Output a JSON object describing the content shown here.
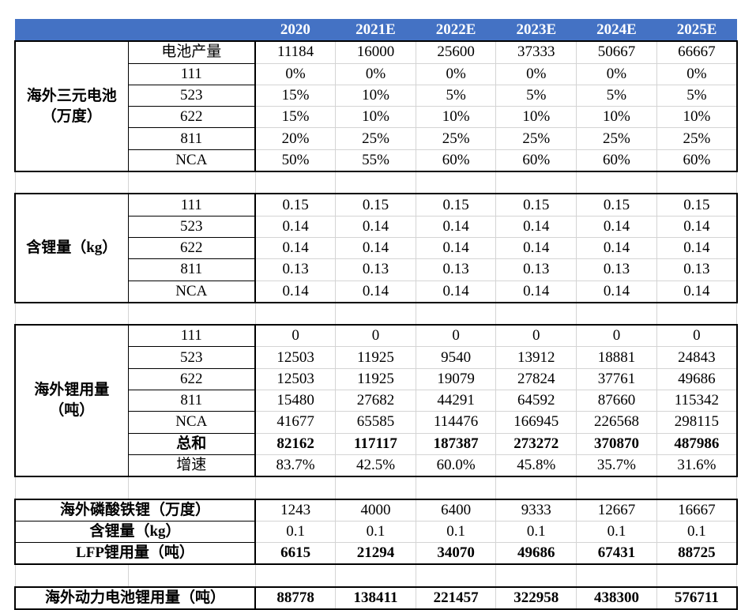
{
  "header": {
    "corner": "",
    "years": [
      "2020",
      "2021E",
      "2022E",
      "2023E",
      "2024E",
      "2025E"
    ]
  },
  "sections": [
    {
      "label": "海外三元电池（万度）",
      "rows": [
        {
          "label": "电池产量",
          "values": [
            "11184",
            "16000",
            "25600",
            "37333",
            "50667",
            "66667"
          ]
        },
        {
          "label": "111",
          "values": [
            "0%",
            "0%",
            "0%",
            "0%",
            "0%",
            "0%"
          ]
        },
        {
          "label": "523",
          "values": [
            "15%",
            "10%",
            "5%",
            "5%",
            "5%",
            "5%"
          ]
        },
        {
          "label": "622",
          "values": [
            "15%",
            "10%",
            "10%",
            "10%",
            "10%",
            "10%"
          ]
        },
        {
          "label": "811",
          "values": [
            "20%",
            "25%",
            "25%",
            "25%",
            "25%",
            "25%"
          ]
        },
        {
          "label": "NCA",
          "values": [
            "50%",
            "55%",
            "60%",
            "60%",
            "60%",
            "60%"
          ]
        }
      ]
    },
    {
      "label": "含锂量（kg）",
      "rows": [
        {
          "label": "111",
          "values": [
            "0.15",
            "0.15",
            "0.15",
            "0.15",
            "0.15",
            "0.15"
          ]
        },
        {
          "label": "523",
          "values": [
            "0.14",
            "0.14",
            "0.14",
            "0.14",
            "0.14",
            "0.14"
          ]
        },
        {
          "label": "622",
          "values": [
            "0.14",
            "0.14",
            "0.14",
            "0.14",
            "0.14",
            "0.14"
          ]
        },
        {
          "label": "811",
          "values": [
            "0.13",
            "0.13",
            "0.13",
            "0.13",
            "0.13",
            "0.13"
          ]
        },
        {
          "label": "NCA",
          "values": [
            "0.14",
            "0.14",
            "0.14",
            "0.14",
            "0.14",
            "0.14"
          ]
        }
      ]
    },
    {
      "label": "海外锂用量（吨）",
      "rows": [
        {
          "label": "111",
          "values": [
            "0",
            "0",
            "0",
            "0",
            "0",
            "0"
          ]
        },
        {
          "label": "523",
          "values": [
            "12503",
            "11925",
            "9540",
            "13912",
            "18881",
            "24843"
          ]
        },
        {
          "label": "622",
          "values": [
            "12503",
            "11925",
            "19079",
            "27824",
            "37761",
            "49686"
          ]
        },
        {
          "label": "811",
          "values": [
            "15480",
            "27682",
            "44291",
            "64592",
            "87660",
            "115342"
          ]
        },
        {
          "label": "NCA",
          "values": [
            "41677",
            "65585",
            "114476",
            "166945",
            "226568",
            "298115"
          ]
        },
        {
          "label": "总和",
          "bold": true,
          "values": [
            "82162",
            "117117",
            "187387",
            "273272",
            "370870",
            "487986"
          ]
        },
        {
          "label": "增速",
          "values": [
            "83.7%",
            "42.5%",
            "60.0%",
            "45.8%",
            "35.7%",
            "31.6%"
          ]
        }
      ]
    },
    {
      "label": null,
      "rows": [
        {
          "label": "海外磷酸铁锂（万度）",
          "values": [
            "1243",
            "4000",
            "6400",
            "9333",
            "12667",
            "16667"
          ]
        },
        {
          "label": "含锂量（kg）",
          "values": [
            "0.1",
            "0.1",
            "0.1",
            "0.1",
            "0.1",
            "0.1"
          ]
        },
        {
          "label": "LFP锂用量（吨）",
          "bold": true,
          "values": [
            "6615",
            "21294",
            "34070",
            "49686",
            "67431",
            "88725"
          ]
        }
      ]
    },
    {
      "label": null,
      "rows": [
        {
          "label": "海外动力电池锂用量（吨）",
          "bold": true,
          "values": [
            "88778",
            "138411",
            "221457",
            "322958",
            "438300",
            "576711"
          ]
        }
      ]
    }
  ]
}
